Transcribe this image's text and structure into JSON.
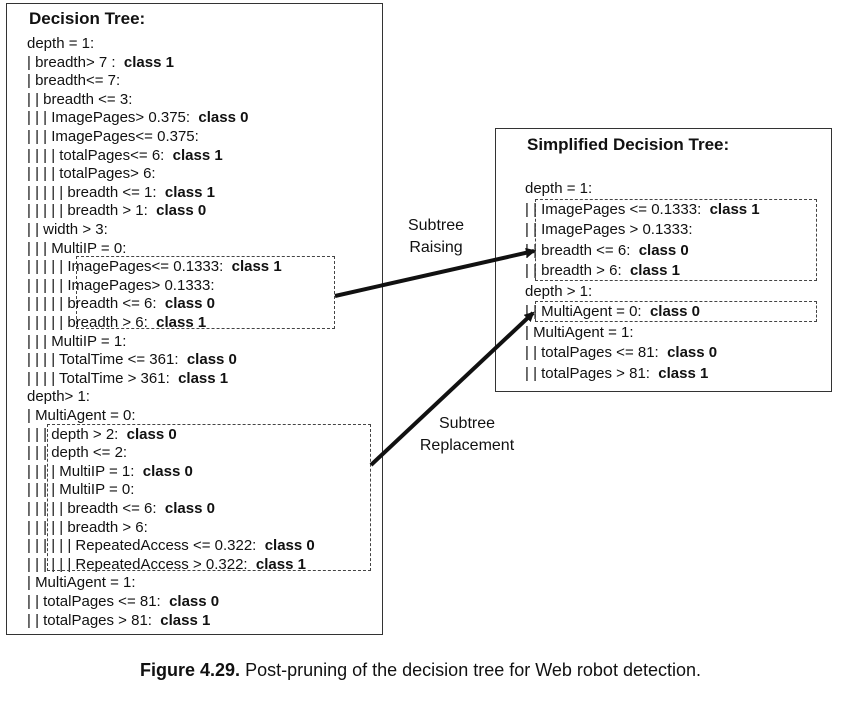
{
  "left_tree": {
    "title": "Decision Tree:",
    "lines": [
      {
        "prefix": "depth = 1:",
        "cls": ""
      },
      {
        "prefix": "| breadth> 7 :  ",
        "cls": "class 1"
      },
      {
        "prefix": "| breadth<= 7:",
        "cls": ""
      },
      {
        "prefix": "| | breadth <= 3:",
        "cls": ""
      },
      {
        "prefix": "| | | ImagePages> 0.375:  ",
        "cls": "class 0"
      },
      {
        "prefix": "| | | ImagePages<= 0.375:",
        "cls": ""
      },
      {
        "prefix": "| | | | totalPages<= 6:  ",
        "cls": "class 1"
      },
      {
        "prefix": "| | | | totalPages> 6:",
        "cls": ""
      },
      {
        "prefix": "| | | | | breadth <= 1:  ",
        "cls": "class 1"
      },
      {
        "prefix": "| | | | | breadth > 1:  ",
        "cls": "class 0"
      },
      {
        "prefix": "| | width > 3:",
        "cls": ""
      },
      {
        "prefix": "| | | MultiIP = 0:",
        "cls": ""
      },
      {
        "prefix": "| | | | | ImagePages<= 0.1333:  ",
        "cls": "class 1"
      },
      {
        "prefix": "| | | | | ImagePages> 0.1333:",
        "cls": ""
      },
      {
        "prefix": "| | | | | breadth <= 6:  ",
        "cls": "class 0"
      },
      {
        "prefix": "| | | | | breadth > 6:  ",
        "cls": "class 1"
      },
      {
        "prefix": "| | | MultiIP = 1:",
        "cls": ""
      },
      {
        "prefix": "| | | | TotalTime <= 361:  ",
        "cls": "class 0"
      },
      {
        "prefix": "| | | | TotalTime > 361:  ",
        "cls": "class 1"
      },
      {
        "prefix": "depth> 1:",
        "cls": ""
      },
      {
        "prefix": "| MultiAgent = 0:",
        "cls": ""
      },
      {
        "prefix": "| | | depth > 2:  ",
        "cls": "class 0"
      },
      {
        "prefix": "| | | depth <= 2:",
        "cls": ""
      },
      {
        "prefix": "| | | | MultiIP = 1:  ",
        "cls": "class 0"
      },
      {
        "prefix": "| | | | MultiIP = 0:",
        "cls": ""
      },
      {
        "prefix": "| | | | | breadth <= 6:  ",
        "cls": "class 0"
      },
      {
        "prefix": "| | | | | breadth > 6:",
        "cls": ""
      },
      {
        "prefix": "| | | | | | RepeatedAccess <= 0.322:  ",
        "cls": "class 0"
      },
      {
        "prefix": "| | | | | | RepeatedAccess > 0.322:  ",
        "cls": "class 1"
      },
      {
        "prefix": "| MultiAgent = 1:",
        "cls": ""
      },
      {
        "prefix": "| | totalPages <= 81:  ",
        "cls": "class 0"
      },
      {
        "prefix": "| | totalPages > 81:  ",
        "cls": "class 1"
      }
    ]
  },
  "right_tree": {
    "title": "Simplified Decision Tree:",
    "lines": [
      {
        "prefix": "depth = 1:",
        "cls": ""
      },
      {
        "prefix": "| | ImagePages <= 0.1333:  ",
        "cls": "class 1"
      },
      {
        "prefix": "| | ImagePages > 0.1333:",
        "cls": ""
      },
      {
        "prefix": "| | breadth <= 6:  ",
        "cls": "class 0"
      },
      {
        "prefix": "| | breadth > 6:  ",
        "cls": "class 1"
      },
      {
        "prefix": "depth > 1:",
        "cls": ""
      },
      {
        "prefix": "| | MultiAgent = 0:  ",
        "cls": "class 0"
      },
      {
        "prefix": "| MultiAgent = 1:",
        "cls": ""
      },
      {
        "prefix": "| | totalPages <= 81:  ",
        "cls": "class 0"
      },
      {
        "prefix": "| | totalPages > 81:  ",
        "cls": "class 1"
      }
    ]
  },
  "labels": {
    "raising": [
      "Subtree",
      "Raising"
    ],
    "replacement": [
      "Subtree",
      "Replacement"
    ]
  },
  "caption": {
    "figure": "Figure 4.29.",
    "text": "Post-pruning of the decision tree for Web robot detection."
  }
}
